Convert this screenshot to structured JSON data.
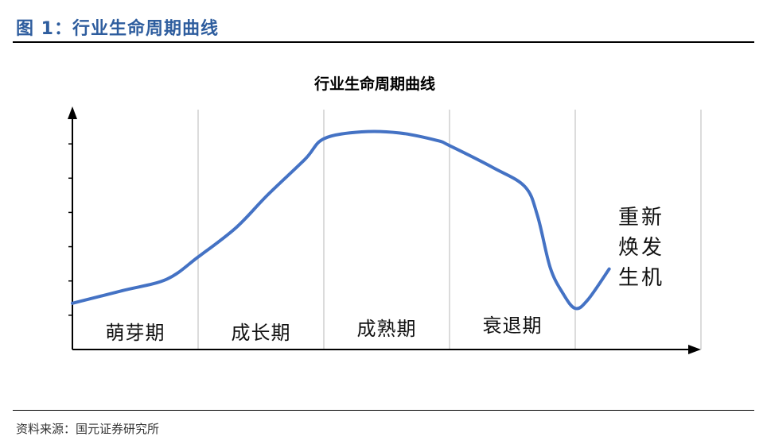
{
  "header": {
    "figure_title": "图 1：行业生命周期曲线"
  },
  "footer": {
    "source": "资料来源：国元证券研究所"
  },
  "chart_data": {
    "type": "line",
    "title": "行业生命周期曲线",
    "xlabel": "",
    "ylabel": "",
    "grid": "vertical dashed separators between stages",
    "legend": "none",
    "stages": [
      "萌芽期",
      "成长期",
      "成熟期",
      "衰退期",
      "重新焕发生机"
    ],
    "series": [
      {
        "x": [
          0.0,
          0.4,
          0.75,
          1.0,
          1.3,
          1.55,
          1.85,
          2.0,
          2.3,
          2.6,
          2.9,
          3.0,
          3.35,
          3.6,
          3.7,
          3.8,
          3.9,
          4.0,
          4.1,
          4.27
        ],
        "y": [
          1.35,
          1.72,
          2.05,
          2.7,
          3.55,
          4.5,
          5.55,
          6.15,
          6.35,
          6.32,
          6.1,
          5.95,
          5.3,
          4.75,
          3.9,
          2.4,
          1.65,
          1.2,
          1.45,
          2.35
        ],
        "color": "#4472c4"
      }
    ],
    "xlim": [
      0,
      5
    ],
    "ylim": [
      0,
      7
    ]
  }
}
